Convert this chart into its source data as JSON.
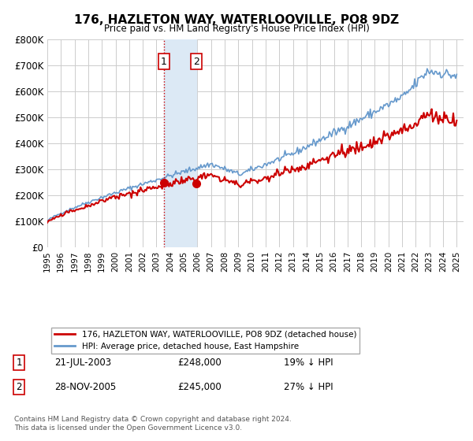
{
  "title": "176, HAZLETON WAY, WATERLOOVILLE, PO8 9DZ",
  "subtitle": "Price paid vs. HM Land Registry's House Price Index (HPI)",
  "legend_property": "176, HAZLETON WAY, WATERLOOVILLE, PO8 9DZ (detached house)",
  "legend_hpi": "HPI: Average price, detached house, East Hampshire",
  "transaction1_label": "1",
  "transaction1_date": "21-JUL-2003",
  "transaction1_price": "£248,000",
  "transaction1_hpi": "19% ↓ HPI",
  "transaction2_label": "2",
  "transaction2_date": "28-NOV-2005",
  "transaction2_price": "£245,000",
  "transaction2_hpi": "27% ↓ HPI",
  "footnote": "Contains HM Land Registry data © Crown copyright and database right 2024.\nThis data is licensed under the Open Government Licence v3.0.",
  "property_color": "#cc0000",
  "hpi_color": "#6699cc",
  "marker_color": "#cc0000",
  "highlight_color": "#dce9f5",
  "vline_color": "#cc0000",
  "grid_color": "#cccccc",
  "ylim": [
    0,
    800000
  ],
  "yticks": [
    0,
    100000,
    200000,
    300000,
    400000,
    500000,
    600000,
    700000,
    800000
  ],
  "ytick_labels": [
    "£0",
    "£100K",
    "£200K",
    "£300K",
    "£400K",
    "£500K",
    "£600K",
    "£700K",
    "£800K"
  ],
  "transaction1_x": 2003.54,
  "transaction1_y": 248000,
  "transaction2_x": 2005.91,
  "transaction2_y": 245000,
  "xmin": 1995.0,
  "xmax": 2025.5
}
